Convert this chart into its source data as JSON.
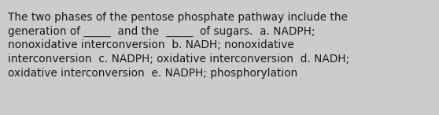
{
  "background_color": "#cccccc",
  "text_line1": "The two phases of the pentose phosphate pathway include the",
  "text_line2": "generation of _____  and the  _____  of sugars.  a. NADPH;",
  "text_line3": "nonoxidative interconversion  b. NADH; nonoxidative",
  "text_line4": "interconversion  c. NADPH; oxidative interconversion  d. NADH;",
  "text_line5": "oxidative interconversion  e. NADPH; phosphorylation",
  "text_color": "#1a1a1a",
  "font_size": 9.8,
  "fig_width": 5.58,
  "fig_height": 1.46,
  "dpi": 100
}
